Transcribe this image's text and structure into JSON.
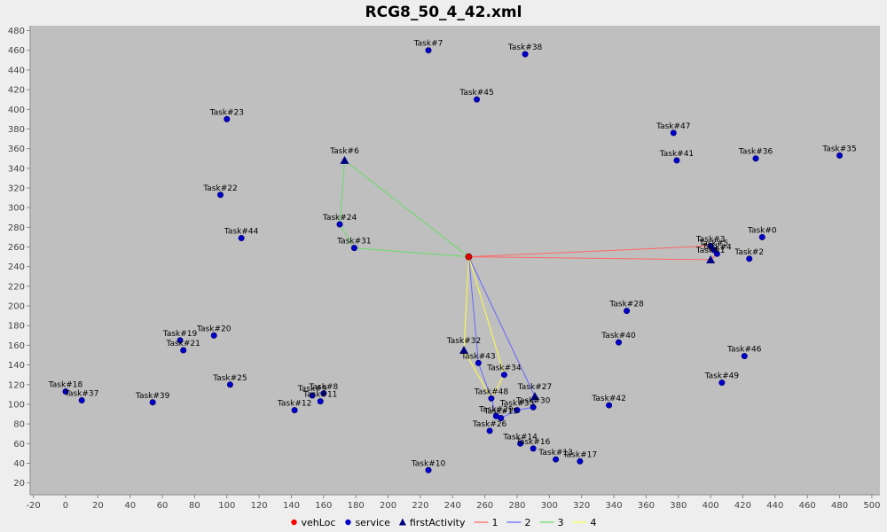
{
  "chart_data": {
    "type": "scatter",
    "title": "RCG8_50_4_42.xml",
    "xlim": [
      -22,
      505
    ],
    "ylim": [
      8,
      485
    ],
    "x_ticks": [
      -20,
      0,
      20,
      40,
      60,
      80,
      100,
      120,
      140,
      160,
      180,
      200,
      220,
      240,
      260,
      280,
      300,
      320,
      340,
      360,
      380,
      400,
      420,
      440,
      460,
      480,
      500
    ],
    "y_ticks": [
      20,
      40,
      60,
      80,
      100,
      120,
      140,
      160,
      180,
      200,
      220,
      240,
      260,
      280,
      300,
      320,
      340,
      360,
      380,
      400,
      420,
      440,
      460,
      480
    ],
    "grid": false,
    "legend": {
      "position": "bottom",
      "entries": [
        {
          "label": "vehLoc",
          "kind": "dot",
          "color": "#ff0000"
        },
        {
          "label": "service",
          "kind": "dot",
          "color": "#0000cc"
        },
        {
          "label": "firstActivity",
          "kind": "triangle",
          "color": "#000080"
        },
        {
          "label": "1",
          "kind": "line",
          "color": "#ff6666"
        },
        {
          "label": "2",
          "kind": "line",
          "color": "#6666ff"
        },
        {
          "label": "3",
          "kind": "line",
          "color": "#66dd66"
        },
        {
          "label": "4",
          "kind": "line",
          "color": "#ffff44"
        }
      ]
    },
    "vehLoc": {
      "x": 250,
      "y": 250
    },
    "service": [
      {
        "label": "Task#7",
        "x": 225,
        "y": 460
      },
      {
        "label": "Task#38",
        "x": 285,
        "y": 456
      },
      {
        "label": "Task#45",
        "x": 255,
        "y": 410
      },
      {
        "label": "Task#23",
        "x": 100,
        "y": 390
      },
      {
        "label": "Task#47",
        "x": 377,
        "y": 376
      },
      {
        "label": "Task#41",
        "x": 379,
        "y": 348
      },
      {
        "label": "Task#36",
        "x": 428,
        "y": 350
      },
      {
        "label": "Task#35",
        "x": 480,
        "y": 353
      },
      {
        "label": "Task#22",
        "x": 96,
        "y": 313
      },
      {
        "label": "Task#24",
        "x": 170,
        "y": 283
      },
      {
        "label": "Task#44",
        "x": 109,
        "y": 269
      },
      {
        "label": "Task#31",
        "x": 179,
        "y": 259
      },
      {
        "label": "Task#0",
        "x": 432,
        "y": 270
      },
      {
        "label": "Task#3",
        "x": 400,
        "y": 261
      },
      {
        "label": "Task#5",
        "x": 402,
        "y": 257
      },
      {
        "label": "Task#4",
        "x": 404,
        "y": 253
      },
      {
        "label": "Task#2",
        "x": 424,
        "y": 248
      },
      {
        "label": "Task#28",
        "x": 348,
        "y": 195
      },
      {
        "label": "Task#20",
        "x": 92,
        "y": 170
      },
      {
        "label": "Task#19",
        "x": 71,
        "y": 165
      },
      {
        "label": "Task#21",
        "x": 73,
        "y": 155
      },
      {
        "label": "Task#40",
        "x": 343,
        "y": 163
      },
      {
        "label": "Task#46",
        "x": 421,
        "y": 149
      },
      {
        "label": "Task#43",
        "x": 256,
        "y": 142
      },
      {
        "label": "Task#34",
        "x": 272,
        "y": 130
      },
      {
        "label": "Task#49",
        "x": 407,
        "y": 122
      },
      {
        "label": "Task#25",
        "x": 102,
        "y": 120
      },
      {
        "label": "Task#18",
        "x": 0,
        "y": 113
      },
      {
        "label": "Task#37",
        "x": 10,
        "y": 104
      },
      {
        "label": "Task#39",
        "x": 54,
        "y": 102
      },
      {
        "label": "Task#8",
        "x": 160,
        "y": 111
      },
      {
        "label": "Task#9",
        "x": 153,
        "y": 109
      },
      {
        "label": "Task#11",
        "x": 158,
        "y": 103
      },
      {
        "label": "Task#12",
        "x": 142,
        "y": 94
      },
      {
        "label": "Task#48",
        "x": 264,
        "y": 106
      },
      {
        "label": "Task#30",
        "x": 290,
        "y": 97
      },
      {
        "label": "Task#33",
        "x": 280,
        "y": 94
      },
      {
        "label": "Task#29",
        "x": 267,
        "y": 88
      },
      {
        "label": "Task#15",
        "x": 270,
        "y": 86
      },
      {
        "label": "Task#42",
        "x": 337,
        "y": 99
      },
      {
        "label": "Task#26",
        "x": 263,
        "y": 73
      },
      {
        "label": "Task#14",
        "x": 282,
        "y": 60
      },
      {
        "label": "Task#16",
        "x": 290,
        "y": 55
      },
      {
        "label": "Task#13",
        "x": 304,
        "y": 44
      },
      {
        "label": "Task#17",
        "x": 319,
        "y": 42
      },
      {
        "label": "Task#10",
        "x": 225,
        "y": 33
      }
    ],
    "firstActivity": [
      {
        "label": "Task#6",
        "x": 173,
        "y": 348
      },
      {
        "label": "Task#1",
        "x": 400,
        "y": 247
      },
      {
        "label": "Task#32",
        "x": 247,
        "y": 155
      },
      {
        "label": "Task#27",
        "x": 291,
        "y": 108
      }
    ],
    "routes": [
      {
        "name": "1",
        "color": "#ff6666",
        "points": [
          [
            250,
            250
          ],
          [
            400,
            247
          ],
          [
            404,
            253
          ],
          [
            402,
            257
          ],
          [
            400,
            261
          ],
          [
            250,
            250
          ]
        ]
      },
      {
        "name": "2",
        "color": "#6666ff",
        "points": [
          [
            250,
            250
          ],
          [
            291,
            108
          ],
          [
            290,
            97
          ],
          [
            280,
            94
          ],
          [
            270,
            86
          ],
          [
            267,
            88
          ],
          [
            264,
            106
          ],
          [
            256,
            142
          ],
          [
            250,
            250
          ]
        ]
      },
      {
        "name": "3",
        "color": "#66dd66",
        "points": [
          [
            250,
            250
          ],
          [
            173,
            348
          ],
          [
            170,
            283
          ],
          [
            179,
            259
          ],
          [
            250,
            250
          ]
        ]
      },
      {
        "name": "4",
        "color": "#ffff44",
        "points": [
          [
            250,
            250
          ],
          [
            247,
            155
          ],
          [
            264,
            106
          ],
          [
            272,
            130
          ],
          [
            250,
            250
          ]
        ]
      }
    ]
  }
}
